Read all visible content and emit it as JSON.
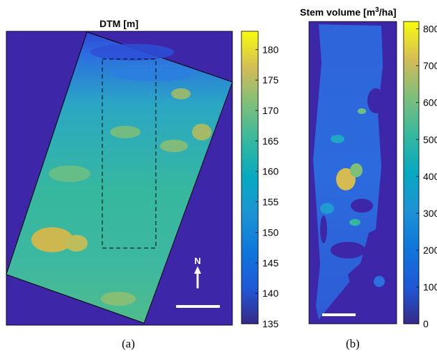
{
  "chart_data": [
    {
      "type": "heatmap",
      "title": "DTM [m]",
      "colorbar": {
        "min": 135,
        "max": 183,
        "ticks": [
          135,
          140,
          145,
          150,
          155,
          160,
          165,
          170,
          175,
          180
        ]
      },
      "north_arrow_label": "N",
      "has_scale_bar": true,
      "has_dashed_region": true,
      "caption": "(a)"
    },
    {
      "type": "heatmap",
      "title": "Stem volume [m",
      "title_sup": "3",
      "title_tail": "/ha]",
      "colorbar": {
        "min": 0,
        "max": 820,
        "ticks": [
          0,
          100,
          200,
          300,
          400,
          500,
          600,
          700,
          800
        ]
      },
      "has_scale_bar": true,
      "caption": "(b)"
    }
  ],
  "colors": {
    "background": "#3e26a8",
    "low": "#352a87",
    "mid": "#1fb7b0",
    "high": "#f9fb0e"
  }
}
